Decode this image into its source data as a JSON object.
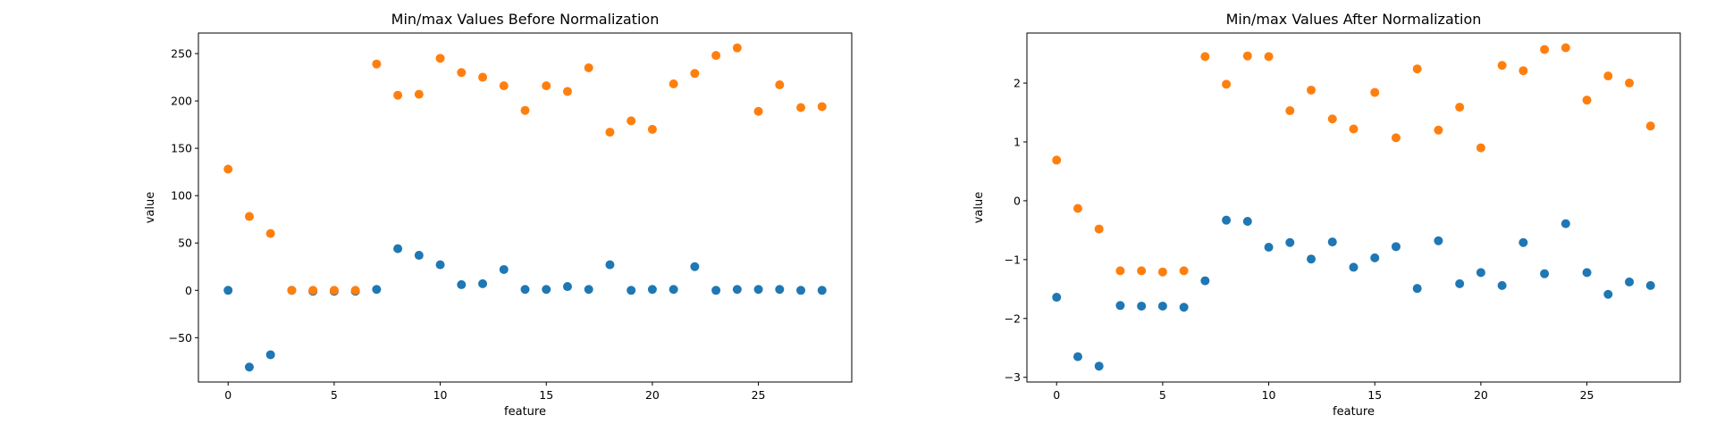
{
  "chart_data": [
    {
      "type": "scatter",
      "title": "Min/max Values Before Normalization",
      "xlabel": "feature",
      "ylabel": "value",
      "xlim": [
        -1.4,
        29.4
      ],
      "ylim": [
        -96.8,
        271.7
      ],
      "xticks": [
        0,
        5,
        10,
        15,
        20,
        25
      ],
      "yticks": [
        -50,
        0,
        50,
        100,
        150,
        200,
        250
      ],
      "grid": false,
      "series": [
        {
          "color": "#1f77b4",
          "x": [
            0,
            1,
            2,
            3,
            4,
            5,
            6,
            7,
            8,
            9,
            10,
            11,
            12,
            13,
            14,
            15,
            16,
            17,
            18,
            19,
            20,
            21,
            22,
            23,
            24,
            25,
            26,
            27,
            28
          ],
          "y": [
            0,
            -81,
            -68,
            0,
            -1,
            -1,
            -1,
            1,
            44,
            37,
            27,
            6,
            7,
            22,
            1,
            1,
            4,
            1,
            27,
            0,
            1,
            1,
            25,
            0,
            1,
            1,
            1,
            0,
            0
          ]
        },
        {
          "color": "#ff7f0e",
          "x": [
            0,
            1,
            2,
            3,
            4,
            5,
            6,
            7,
            8,
            9,
            10,
            11,
            12,
            13,
            14,
            15,
            16,
            17,
            18,
            19,
            20,
            21,
            22,
            23,
            24,
            25,
            26,
            27,
            28
          ],
          "y": [
            128,
            78,
            60,
            0,
            0,
            0,
            0,
            239,
            206,
            207,
            245,
            230,
            225,
            216,
            190,
            216,
            210,
            235,
            167,
            179,
            170,
            218,
            229,
            248,
            256,
            189,
            217,
            193,
            194
          ]
        }
      ]
    },
    {
      "type": "scatter",
      "title": "Min/max Values After Normalization",
      "xlabel": "feature",
      "ylabel": "value",
      "xlim": [
        -1.4,
        29.4
      ],
      "ylim": [
        -3.08,
        2.85
      ],
      "xticks": [
        0,
        5,
        10,
        15,
        20,
        25
      ],
      "yticks": [
        -3,
        -2,
        -1,
        0,
        1,
        2
      ],
      "grid": false,
      "series": [
        {
          "color": "#1f77b4",
          "x": [
            0,
            1,
            2,
            3,
            4,
            5,
            6,
            7,
            8,
            9,
            10,
            11,
            12,
            13,
            14,
            15,
            16,
            17,
            18,
            19,
            20,
            21,
            22,
            23,
            24,
            25,
            26,
            27,
            28
          ],
          "y": [
            -1.64,
            -2.65,
            -2.81,
            -1.78,
            -1.79,
            -1.79,
            -1.81,
            -1.36,
            -0.33,
            -0.35,
            -0.79,
            -0.71,
            -0.99,
            -0.7,
            -1.13,
            -0.97,
            -0.78,
            -1.49,
            -0.68,
            -1.41,
            -1.22,
            -1.44,
            -0.71,
            -1.24,
            -0.39,
            -1.22,
            -1.59,
            -1.38,
            -1.44
          ]
        },
        {
          "color": "#ff7f0e",
          "x": [
            0,
            1,
            2,
            3,
            4,
            5,
            6,
            7,
            8,
            9,
            10,
            11,
            12,
            13,
            14,
            15,
            16,
            17,
            18,
            19,
            20,
            21,
            22,
            23,
            24,
            25,
            26,
            27,
            28
          ],
          "y": [
            0.69,
            -0.13,
            -0.48,
            -1.19,
            -1.19,
            -1.21,
            -1.19,
            2.45,
            1.98,
            2.46,
            2.45,
            1.53,
            1.88,
            1.39,
            1.22,
            1.84,
            1.07,
            2.24,
            1.2,
            1.59,
            0.9,
            2.3,
            2.21,
            2.57,
            2.6,
            1.71,
            2.12,
            2.0,
            1.27
          ]
        }
      ]
    }
  ]
}
